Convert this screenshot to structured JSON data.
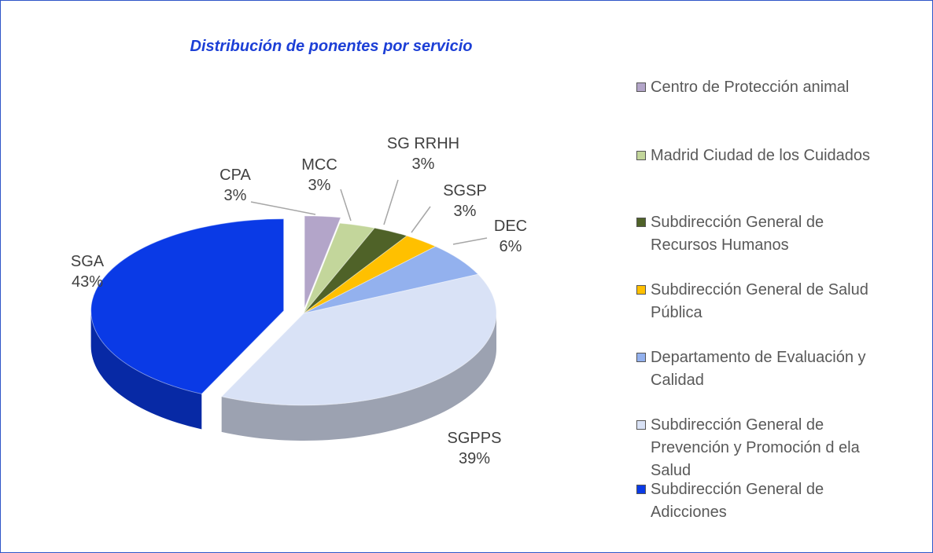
{
  "chart_data": {
    "type": "pie",
    "title": "Distribución de ponentes por servicio",
    "categories": [
      "Centro de Protección animal",
      "Madrid Ciudad de los Cuidados",
      "Subdirección General de Recursos Humanos",
      "Subdirección General de Salud Pública",
      "Departamento de Evaluación y Calidad",
      "Subdirección General de Prevención y Promoción d ela Salud",
      "Subdirección General de Adicciones"
    ],
    "data_labels": [
      "CPA",
      "MCC",
      "SG RRHH",
      "SGSP",
      "DEC",
      "SGPPS",
      "SGA"
    ],
    "values": [
      3,
      3,
      3,
      3,
      6,
      39,
      43
    ],
    "value_labels": [
      "3%",
      "3%",
      "3%",
      "3%",
      "6%",
      "39%",
      "43%"
    ],
    "colors": [
      "#b3a5c9",
      "#c3d69b",
      "#4f6228",
      "#ffc000",
      "#93b1ee",
      "#d9e2f6",
      "#0a3ae6"
    ],
    "legend": "right"
  }
}
